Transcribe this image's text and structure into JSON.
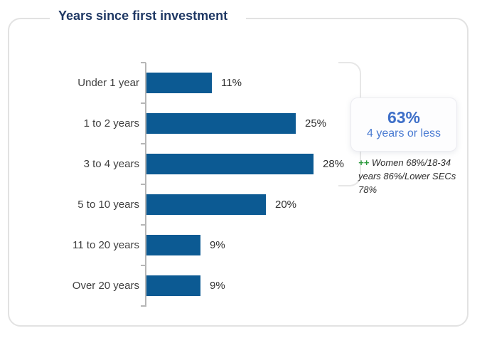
{
  "title": "Years since first investment",
  "chart_data": {
    "type": "bar",
    "orientation": "horizontal",
    "title": "Years since first investment",
    "categories": [
      "Under 1 year",
      "1 to 2 years",
      "3 to 4 years",
      "5 to 10 years",
      "11 to 20 years",
      "Over 20 years"
    ],
    "values": [
      11,
      25,
      28,
      20,
      9,
      9
    ],
    "value_suffix": "%",
    "xlim": [
      0,
      30
    ],
    "grid": false,
    "data_labels": true,
    "legend": "none"
  },
  "callout": {
    "value": "63%",
    "label": "4 years or less",
    "covers_categories": [
      "Under 1 year",
      "1 to 2 years",
      "3 to 4 years"
    ]
  },
  "annotation": {
    "marker": "++",
    "text": "Women 68%/18-34 years 86%/Lower SECs 78%"
  },
  "colors": {
    "title_navy": "#1f3864",
    "bar_blue": "#0c5a93",
    "accent_blue": "#3e6fc8",
    "accent_blue_light": "#4a7bd2",
    "green": "#2e9b3f",
    "text_dark": "#3f3f3f",
    "axis_gray": "#b6b6b6",
    "border_gray": "#e2e2e2"
  }
}
